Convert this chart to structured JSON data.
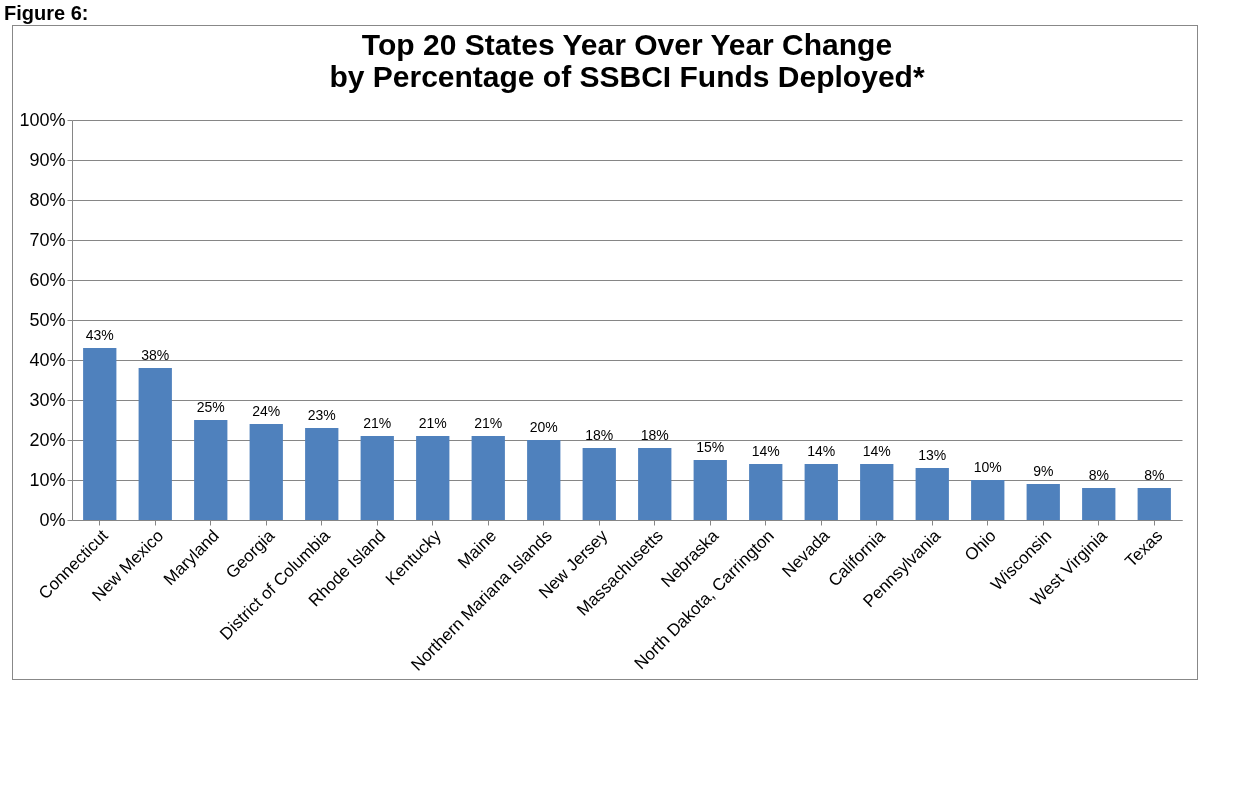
{
  "chart_data": {
    "type": "bar",
    "title": "Top 20 States Year Over Year Change\nby Percentage of SSBCI Funds Deployed*",
    "annotations": [
      "Figure 6:"
    ],
    "categories": [
      "Connecticut",
      "New Mexico",
      "Maryland",
      "Georgia",
      "District of Columbia",
      "Rhode Island",
      "Kentucky",
      "Maine",
      "Northern Mariana Islands",
      "New Jersey",
      "Massachusetts",
      "Nebraska",
      "North Dakota, Carrington",
      "Nevada",
      "California",
      "Pennsylvania",
      "Ohio",
      "Wisconsin",
      "West Virginia",
      "Texas"
    ],
    "values": [
      43,
      38,
      25,
      24,
      23,
      21,
      21,
      21,
      20,
      18,
      18,
      15,
      14,
      14,
      14,
      13,
      10,
      9,
      8,
      8
    ],
    "value_labels": [
      "43%",
      "38%",
      "25%",
      "24%",
      "23%",
      "21%",
      "21%",
      "21%",
      "20%",
      "18%",
      "18%",
      "15%",
      "14%",
      "14%",
      "14%",
      "13%",
      "10%",
      "9%",
      "8%",
      "8%"
    ],
    "color": "#4f81bd",
    "grid": "y",
    "ylim": [
      0,
      100
    ],
    "yticks": [
      {
        "value": 0,
        "label": "0%"
      },
      {
        "value": 10,
        "label": "10%"
      },
      {
        "value": 20,
        "label": "20%"
      },
      {
        "value": 30,
        "label": "30%"
      },
      {
        "value": 40,
        "label": "40%"
      },
      {
        "value": 50,
        "label": "50%"
      },
      {
        "value": 60,
        "label": "60%"
      },
      {
        "value": 70,
        "label": "70%"
      },
      {
        "value": 80,
        "label": "80%"
      },
      {
        "value": 90,
        "label": "90%"
      },
      {
        "value": 100,
        "label": "100%"
      }
    ]
  }
}
